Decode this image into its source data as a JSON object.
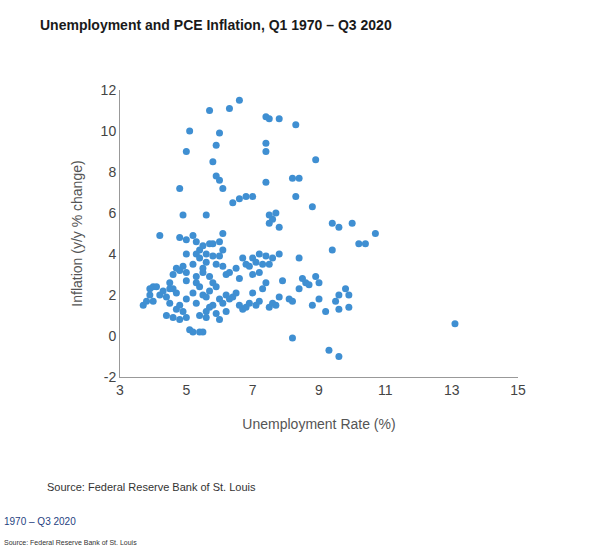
{
  "chart_data": {
    "type": "scatter",
    "title": "Unemployment and PCE Inflation, Q1 1970 – Q3 2020",
    "x_label": "Unemployment Rate (%)",
    "y_label": "Inflation (y/y % change)",
    "annotations": [
      "Source: Federal Reserve Bank of St. Louis",
      "1970 – Q3 2020",
      "Source: Federal Reserve Bank of St. Louis"
    ],
    "color": "#3f8fd2",
    "marker": "circle",
    "grid": false,
    "xlim": [
      3,
      15
    ],
    "xticks": [
      3,
      5,
      7,
      9,
      11,
      13,
      15
    ],
    "ylim": [
      -2,
      12
    ],
    "yticks": [
      -2,
      0,
      2,
      4,
      6,
      8,
      10,
      12
    ],
    "x": [
      5.7,
      6.6,
      6.3,
      7.4,
      7.5,
      7.8,
      8.3,
      5.1,
      6.0,
      5.0,
      5.9,
      7.4,
      7.4,
      5.8,
      8.9,
      5.9,
      6.0,
      6.1,
      4.8,
      8.2,
      8.4,
      7.4,
      6.8,
      6.6,
      7.0,
      6.4,
      8.3,
      8.8,
      4.9,
      5.6,
      7.5,
      7.6,
      7.7,
      7.8,
      7.5,
      6.1,
      9.4,
      10.0,
      10.7,
      10.2,
      10.4,
      9.6,
      4.2,
      4.8,
      5.2,
      5.3,
      5.0,
      5.5,
      5.7,
      5.8,
      6.0,
      6.1,
      5.4,
      5.6,
      5.3,
      5.0,
      5.4,
      5.6,
      5.8,
      5.9,
      6.0,
      6.1,
      5.2,
      5.5,
      4.9,
      5.0,
      4.8,
      4.6,
      4.7,
      4.5,
      7.2,
      7.0,
      7.5,
      7.4,
      7.6,
      7.8,
      7.1,
      7.3,
      6.8,
      6.9,
      6.7,
      8.4,
      9.4,
      8.6,
      8.9,
      9.0,
      7.0,
      7.2,
      6.6,
      6.5,
      6.2,
      6.3,
      5.7,
      5.5,
      5.3,
      5.0,
      3.7,
      3.8,
      3.9,
      3.9,
      4.0,
      4.1,
      4.0,
      4.2,
      4.3,
      4.4,
      4.5,
      4.5,
      4.6,
      4.7,
      4.7,
      4.8,
      4.9,
      4.4,
      4.6,
      4.8,
      5.0,
      5.1,
      5.2,
      5.4,
      5.5,
      5.6,
      5.0,
      5.2,
      5.3,
      5.4,
      5.5,
      5.6,
      5.7,
      5.8,
      5.9,
      6.0,
      6.1,
      6.2,
      6.3,
      5.8,
      5.7,
      5.6,
      5.9,
      6.0,
      6.5,
      6.6,
      6.7,
      6.8,
      6.9,
      7.0,
      7.1,
      7.2,
      7.3,
      7.4,
      7.5,
      7.6,
      7.7,
      7.8,
      7.9,
      8.1,
      8.2,
      8.4,
      8.5,
      8.7,
      8.8,
      9.0,
      9.2,
      9.5,
      9.6,
      9.8,
      9.9,
      9.6,
      9.9,
      8.2,
      9.3,
      9.6,
      13.1,
      6.4,
      6.2,
      5.3,
      5.4
    ],
    "values": [
      11.0,
      11.5,
      11.1,
      10.7,
      10.6,
      10.6,
      10.3,
      10.0,
      9.9,
      9.0,
      9.3,
      9.4,
      9.0,
      8.5,
      8.6,
      7.8,
      7.6,
      7.2,
      7.2,
      7.7,
      7.7,
      7.5,
      6.8,
      6.7,
      6.8,
      6.5,
      6.8,
      6.3,
      5.9,
      5.9,
      5.9,
      5.7,
      6.0,
      5.3,
      5.5,
      5.0,
      5.5,
      5.5,
      5.0,
      4.5,
      4.5,
      5.3,
      4.9,
      4.8,
      4.9,
      4.6,
      4.7,
      4.4,
      4.5,
      4.5,
      4.6,
      4.2,
      4.2,
      4.0,
      4.0,
      4.0,
      3.8,
      3.6,
      3.9,
      3.5,
      3.9,
      3.4,
      3.5,
      3.3,
      3.4,
      3.1,
      3.2,
      3.0,
      3.3,
      2.6,
      4.0,
      3.8,
      3.5,
      3.9,
      3.8,
      4.0,
      3.6,
      3.5,
      3.5,
      3.4,
      3.8,
      3.8,
      4.2,
      2.6,
      2.9,
      2.6,
      3.0,
      3.1,
      2.8,
      3.3,
      3.0,
      3.1,
      2.9,
      3.1,
      2.9,
      2.7,
      1.5,
      1.7,
      2.0,
      2.3,
      2.4,
      2.4,
      1.7,
      2.0,
      2.2,
      1.9,
      1.6,
      2.3,
      2.3,
      2.1,
      1.3,
      1.5,
      1.2,
      1.0,
      0.9,
      0.8,
      0.9,
      0.3,
      0.2,
      0.2,
      0.2,
      0.9,
      1.8,
      2.1,
      2.6,
      2.4,
      2.0,
      1.9,
      2.2,
      2.6,
      2.4,
      1.8,
      1.6,
      2.0,
      1.8,
      1.5,
      1.4,
      1.2,
      1.1,
      0.8,
      2.1,
      1.5,
      1.3,
      1.4,
      1.6,
      2.1,
      1.5,
      1.7,
      2.3,
      2.6,
      1.4,
      1.6,
      1.5,
      1.9,
      2.7,
      1.8,
      1.7,
      2.3,
      2.8,
      2.5,
      1.5,
      1.8,
      1.2,
      1.7,
      2.0,
      2.3,
      1.4,
      1.3,
      2.0,
      -0.1,
      -0.7,
      -1.0,
      0.6,
      1.9,
      1.2,
      1.6,
      1.0
    ]
  }
}
